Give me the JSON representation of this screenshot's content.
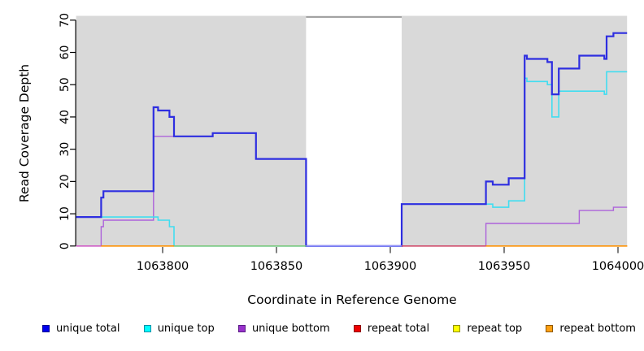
{
  "chart_data": {
    "type": "line",
    "subtype": "step-coverage-plot",
    "title": "",
    "xlabel": "Coordinate in Reference Genome",
    "ylabel": "Read Coverage Depth",
    "xlim": [
      1063762,
      1064004
    ],
    "ylim": [
      0,
      70
    ],
    "x_ticks": [
      1063800,
      1063850,
      1063900,
      1063950,
      1064000
    ],
    "y_ticks": [
      0,
      10,
      20,
      30,
      40,
      50,
      60,
      70
    ],
    "grid": false,
    "legend_position": "bottom",
    "plot_background": "#d9d9d9",
    "masked_region": {
      "x_start": 1063863,
      "x_end": 1063905,
      "fill": "#ffffff",
      "top_border_color": "#8a8a8a"
    },
    "series": [
      {
        "name": "unique total",
        "color": "#2e2ee0",
        "width": 2.2,
        "points": [
          [
            1063762,
            9
          ],
          [
            1063773,
            15
          ],
          [
            1063774,
            17
          ],
          [
            1063796,
            43
          ],
          [
            1063798,
            42
          ],
          [
            1063803,
            40
          ],
          [
            1063805,
            34
          ],
          [
            1063822,
            35
          ],
          [
            1063841,
            27
          ],
          [
            1063863,
            0
          ],
          [
            1063905,
            13
          ],
          [
            1063942,
            20
          ],
          [
            1063945,
            19
          ],
          [
            1063952,
            21
          ],
          [
            1063959,
            59
          ],
          [
            1063960,
            58
          ],
          [
            1063969,
            57
          ],
          [
            1063971,
            47
          ],
          [
            1063974,
            55
          ],
          [
            1063983,
            59
          ],
          [
            1063994,
            58
          ],
          [
            1063995,
            65
          ],
          [
            1063998,
            66
          ],
          [
            1064004,
            66
          ]
        ]
      },
      {
        "name": "unique top",
        "color": "#41ddf0",
        "width": 1.6,
        "points": [
          [
            1063762,
            9
          ],
          [
            1063798,
            8
          ],
          [
            1063803,
            6
          ],
          [
            1063805,
            0
          ],
          [
            1063905,
            13
          ],
          [
            1063945,
            12
          ],
          [
            1063952,
            14
          ],
          [
            1063959,
            52
          ],
          [
            1063960,
            51
          ],
          [
            1063969,
            50
          ],
          [
            1063971,
            40
          ],
          [
            1063974,
            48
          ],
          [
            1063994,
            47
          ],
          [
            1063995,
            54
          ],
          [
            1064004,
            54
          ]
        ]
      },
      {
        "name": "unique bottom",
        "color": "#ad63da",
        "width": 1.4,
        "points": [
          [
            1063762,
            0
          ],
          [
            1063773,
            6
          ],
          [
            1063774,
            8
          ],
          [
            1063796,
            34
          ],
          [
            1063822,
            35
          ],
          [
            1063841,
            27
          ],
          [
            1063863,
            0
          ],
          [
            1063942,
            7
          ],
          [
            1063983,
            11
          ],
          [
            1063998,
            12
          ],
          [
            1064004,
            12
          ]
        ]
      },
      {
        "name": "repeat total",
        "color": "#dd2222",
        "width": 1.4,
        "points": [
          [
            1063762,
            0
          ],
          [
            1064004,
            0
          ]
        ]
      },
      {
        "name": "repeat top",
        "color": "#f0e838",
        "width": 1.4,
        "points": [
          [
            1063762,
            0
          ],
          [
            1064004,
            0
          ]
        ]
      },
      {
        "name": "repeat bottom",
        "color": "#ff9100",
        "width": 1.4,
        "points": [
          [
            1063762,
            0
          ],
          [
            1064004,
            0
          ]
        ]
      }
    ],
    "zero_line_overdraw_segments": [
      {
        "from": 1063762,
        "to": 1063773,
        "color": "#cf5cc5"
      },
      {
        "from": 1063773,
        "to": 1063805,
        "color": "#ff9100"
      },
      {
        "from": 1063805,
        "to": 1063863,
        "color": "#7cc87c"
      },
      {
        "from": 1063863,
        "to": 1063905,
        "color": "#9191f8"
      },
      {
        "from": 1063905,
        "to": 1063942,
        "color": "#d04a6a"
      },
      {
        "from": 1063942,
        "to": 1064004,
        "color": "#ff9100"
      }
    ],
    "legend": [
      {
        "label": "unique total",
        "fill": "#0000ee",
        "border": "#000090"
      },
      {
        "label": "unique top",
        "fill": "#00ffff",
        "border": "#0090a8"
      },
      {
        "label": "unique bottom",
        "fill": "#9932cc",
        "border": "#5a1a86"
      },
      {
        "label": "repeat total",
        "fill": "#ee0000",
        "border": "#900000"
      },
      {
        "label": "repeat top",
        "fill": "#ffff00",
        "border": "#909000"
      },
      {
        "label": "repeat bottom",
        "fill": "#ffa012",
        "border": "#905800"
      }
    ],
    "axis_text_color": "#000000"
  }
}
